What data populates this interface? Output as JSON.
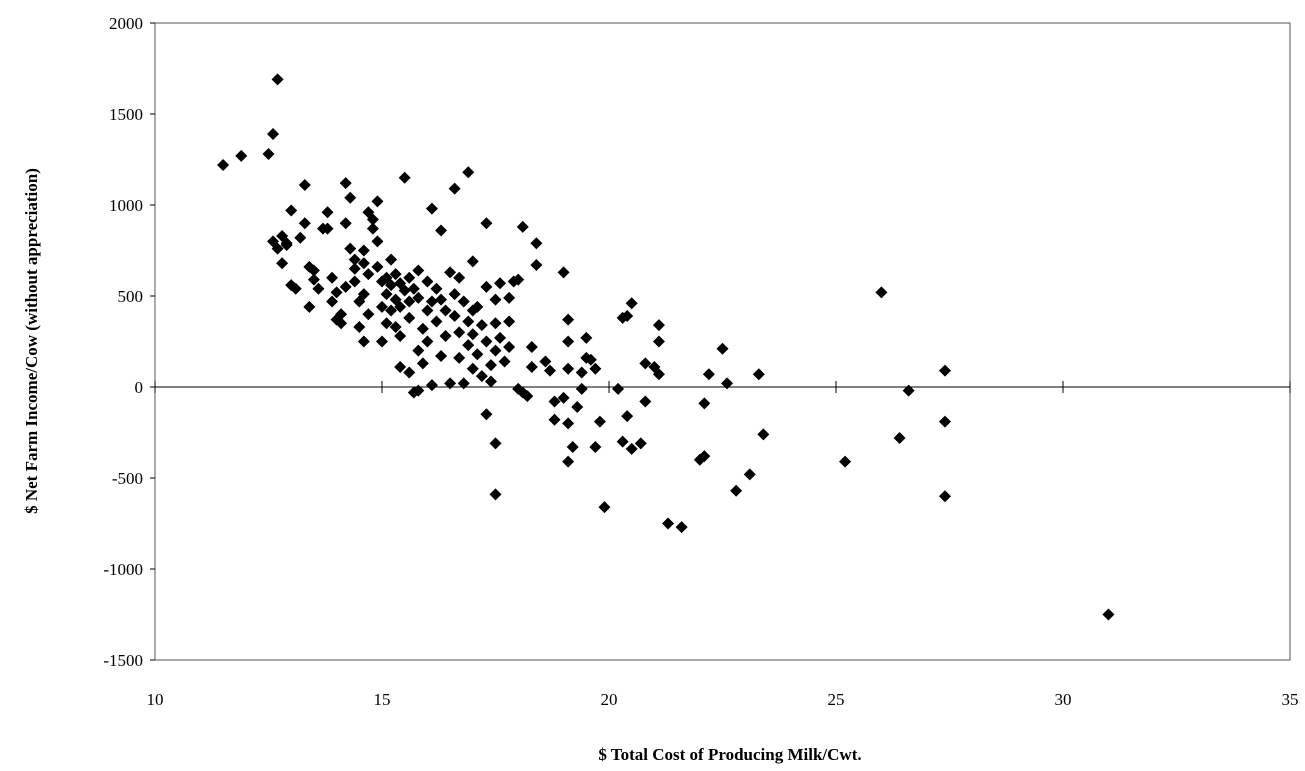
{
  "chart_data": {
    "type": "scatter",
    "title": "",
    "xlabel": "$ Total Cost of Producing Milk/Cwt.",
    "ylabel": "$ Net Farm Income/Cow (without appreciation)",
    "xlim": [
      10,
      35
    ],
    "ylim": [
      -1500,
      2000
    ],
    "xticks": [
      10,
      15,
      20,
      25,
      30,
      35
    ],
    "yticks": [
      -1500,
      -1000,
      -500,
      0,
      500,
      1000,
      1500,
      2000
    ],
    "grid": false,
    "legend": "none",
    "marker": "diamond",
    "marker_color": "#000000",
    "series": [
      {
        "points": [
          [
            11.5,
            1220
          ],
          [
            11.9,
            1270
          ],
          [
            12.5,
            1280
          ],
          [
            12.6,
            1390
          ],
          [
            12.7,
            1690
          ],
          [
            12.6,
            800
          ],
          [
            12.7,
            760
          ],
          [
            12.8,
            830
          ],
          [
            12.9,
            780
          ],
          [
            12.8,
            680
          ],
          [
            12.9,
            790
          ],
          [
            13.0,
            970
          ],
          [
            13.0,
            560
          ],
          [
            13.1,
            540
          ],
          [
            13.2,
            820
          ],
          [
            13.3,
            1110
          ],
          [
            13.3,
            900
          ],
          [
            13.4,
            660
          ],
          [
            13.5,
            640
          ],
          [
            13.5,
            590
          ],
          [
            13.6,
            540
          ],
          [
            13.4,
            440
          ],
          [
            13.7,
            870
          ],
          [
            13.8,
            960
          ],
          [
            13.8,
            870
          ],
          [
            13.9,
            600
          ],
          [
            13.9,
            470
          ],
          [
            14.0,
            520
          ],
          [
            14.0,
            370
          ],
          [
            14.1,
            400
          ],
          [
            14.1,
            350
          ],
          [
            14.2,
            900
          ],
          [
            14.2,
            550
          ],
          [
            14.2,
            1120
          ],
          [
            14.3,
            1040
          ],
          [
            14.3,
            760
          ],
          [
            14.4,
            700
          ],
          [
            14.4,
            580
          ],
          [
            14.5,
            470
          ],
          [
            14.5,
            330
          ],
          [
            14.4,
            650
          ],
          [
            14.6,
            750
          ],
          [
            14.6,
            680
          ],
          [
            14.6,
            510
          ],
          [
            14.7,
            620
          ],
          [
            14.7,
            400
          ],
          [
            14.6,
            250
          ],
          [
            14.7,
            960
          ],
          [
            14.8,
            920
          ],
          [
            14.8,
            870
          ],
          [
            14.9,
            1020
          ],
          [
            14.9,
            800
          ],
          [
            14.9,
            660
          ],
          [
            15.0,
            580
          ],
          [
            15.0,
            440
          ],
          [
            15.0,
            250
          ],
          [
            15.1,
            600
          ],
          [
            15.1,
            510
          ],
          [
            15.1,
            350
          ],
          [
            15.2,
            560
          ],
          [
            15.2,
            420
          ],
          [
            15.2,
            700
          ],
          [
            15.3,
            620
          ],
          [
            15.3,
            480
          ],
          [
            15.3,
            330
          ],
          [
            15.4,
            570
          ],
          [
            15.4,
            440
          ],
          [
            15.4,
            280
          ],
          [
            15.4,
            110
          ],
          [
            15.5,
            1150
          ],
          [
            15.5,
            530
          ],
          [
            15.6,
            600
          ],
          [
            15.6,
            470
          ],
          [
            15.6,
            380
          ],
          [
            15.6,
            80
          ],
          [
            15.7,
            -30
          ],
          [
            15.7,
            540
          ],
          [
            15.8,
            640
          ],
          [
            15.8,
            490
          ],
          [
            15.8,
            200
          ],
          [
            15.8,
            -20
          ],
          [
            15.9,
            320
          ],
          [
            15.9,
            130
          ],
          [
            16.0,
            580
          ],
          [
            16.0,
            420
          ],
          [
            16.0,
            250
          ],
          [
            16.1,
            980
          ],
          [
            16.1,
            470
          ],
          [
            16.1,
            10
          ],
          [
            16.2,
            540
          ],
          [
            16.2,
            360
          ],
          [
            16.3,
            860
          ],
          [
            16.3,
            480
          ],
          [
            16.3,
            170
          ],
          [
            16.4,
            420
          ],
          [
            16.4,
            280
          ],
          [
            16.5,
            630
          ],
          [
            16.5,
            20
          ],
          [
            16.6,
            1090
          ],
          [
            16.6,
            510
          ],
          [
            16.6,
            390
          ],
          [
            16.7,
            600
          ],
          [
            16.7,
            300
          ],
          [
            16.7,
            160
          ],
          [
            16.8,
            20
          ],
          [
            16.8,
            470
          ],
          [
            16.9,
            1180
          ],
          [
            16.9,
            360
          ],
          [
            16.9,
            230
          ],
          [
            17.0,
            690
          ],
          [
            17.0,
            420
          ],
          [
            17.0,
            290
          ],
          [
            17.0,
            100
          ],
          [
            17.1,
            440
          ],
          [
            17.1,
            180
          ],
          [
            17.2,
            60
          ],
          [
            17.2,
            340
          ],
          [
            17.3,
            900
          ],
          [
            17.3,
            550
          ],
          [
            17.3,
            250
          ],
          [
            17.3,
            -150
          ],
          [
            17.4,
            120
          ],
          [
            17.4,
            30
          ],
          [
            17.5,
            480
          ],
          [
            17.5,
            350
          ],
          [
            17.5,
            200
          ],
          [
            17.5,
            -310
          ],
          [
            17.5,
            -590
          ],
          [
            17.6,
            570
          ],
          [
            17.6,
            270
          ],
          [
            17.7,
            140
          ],
          [
            17.8,
            490
          ],
          [
            17.8,
            360
          ],
          [
            17.8,
            220
          ],
          [
            17.9,
            580
          ],
          [
            18.0,
            590
          ],
          [
            18.0,
            -10
          ],
          [
            18.1,
            880
          ],
          [
            18.1,
            -30
          ],
          [
            18.2,
            -50
          ],
          [
            18.3,
            220
          ],
          [
            18.3,
            110
          ],
          [
            18.4,
            790
          ],
          [
            18.4,
            670
          ],
          [
            18.6,
            140
          ],
          [
            18.7,
            90
          ],
          [
            18.8,
            -80
          ],
          [
            18.8,
            -180
          ],
          [
            19.0,
            630
          ],
          [
            19.0,
            -60
          ],
          [
            19.1,
            370
          ],
          [
            19.1,
            250
          ],
          [
            19.1,
            100
          ],
          [
            19.1,
            -200
          ],
          [
            19.1,
            -410
          ],
          [
            19.2,
            -330
          ],
          [
            19.3,
            -110
          ],
          [
            19.4,
            80
          ],
          [
            19.4,
            -10
          ],
          [
            19.5,
            270
          ],
          [
            19.5,
            160
          ],
          [
            19.6,
            150
          ],
          [
            19.7,
            100
          ],
          [
            19.7,
            -330
          ],
          [
            19.8,
            -190
          ],
          [
            19.9,
            -660
          ],
          [
            20.2,
            -10
          ],
          [
            20.3,
            380
          ],
          [
            20.3,
            -300
          ],
          [
            20.4,
            390
          ],
          [
            20.4,
            -160
          ],
          [
            20.5,
            460
          ],
          [
            20.5,
            -340
          ],
          [
            20.7,
            -310
          ],
          [
            20.8,
            -80
          ],
          [
            20.8,
            130
          ],
          [
            21.0,
            110
          ],
          [
            21.1,
            340
          ],
          [
            21.1,
            250
          ],
          [
            21.1,
            70
          ],
          [
            21.3,
            -750
          ],
          [
            21.6,
            -770
          ],
          [
            22.0,
            -400
          ],
          [
            22.1,
            -90
          ],
          [
            22.1,
            -380
          ],
          [
            22.2,
            70
          ],
          [
            22.5,
            210
          ],
          [
            22.6,
            20
          ],
          [
            22.8,
            -570
          ],
          [
            23.1,
            -480
          ],
          [
            23.3,
            70
          ],
          [
            23.4,
            -260
          ],
          [
            25.2,
            -410
          ],
          [
            26.0,
            520
          ],
          [
            26.4,
            -280
          ],
          [
            26.6,
            -20
          ],
          [
            27.4,
            90
          ],
          [
            27.4,
            -190
          ],
          [
            27.4,
            -600
          ],
          [
            31.0,
            -1250
          ]
        ]
      }
    ]
  }
}
